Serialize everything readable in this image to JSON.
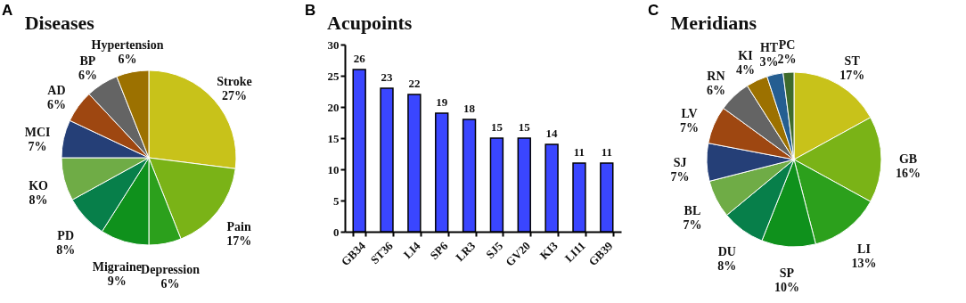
{
  "chart_data": [
    {
      "type": "pie",
      "title": "Diseases",
      "annotations": [
        "A"
      ],
      "categories": [
        "Stroke",
        "Pain",
        "Depression",
        "Migraine",
        "PD",
        "KO",
        "MCI",
        "AD",
        "BP",
        "Hypertension"
      ],
      "values": [
        27,
        17,
        6,
        9,
        8,
        8,
        7,
        6,
        6,
        6
      ],
      "value_labels": [
        "27%",
        "17%",
        "6%",
        "9%",
        "8%",
        "8%",
        "7%",
        "6%",
        "6%",
        "6%"
      ],
      "colors": [
        "#c8c21a",
        "#7ab317",
        "#2ca01c",
        "#0f911c",
        "#077f4a",
        "#6fac46",
        "#253f77",
        "#9e4711",
        "#646464",
        "#9c7100"
      ]
    },
    {
      "type": "bar",
      "title": "Acupoints",
      "annotations": [
        "B"
      ],
      "categories": [
        "GB34",
        "ST36",
        "LI4",
        "SP6",
        "LR3",
        "SJ5",
        "GV20",
        "KI3",
        "LI11",
        "GB39"
      ],
      "values": [
        26,
        23,
        22,
        19,
        18,
        15,
        15,
        14,
        11,
        11
      ],
      "color": "#3a46ff",
      "ylim": [
        0,
        30
      ],
      "yticks": [
        0,
        5,
        10,
        15,
        20,
        25,
        30
      ],
      "grid": false,
      "data_labels": true
    },
    {
      "type": "pie",
      "title": "Meridians",
      "annotations": [
        "C"
      ],
      "categories": [
        "ST",
        "GB",
        "LI",
        "SP",
        "DU",
        "BL",
        "SJ",
        "LV",
        "RN",
        "KI",
        "HT",
        "PC"
      ],
      "values": [
        17,
        16,
        13,
        10,
        8,
        7,
        7,
        7,
        6,
        4,
        3,
        2
      ],
      "value_labels": [
        "17%",
        "16%",
        "13%",
        "10%",
        "8%",
        "7%",
        "7%",
        "7%",
        "6%",
        "4%",
        "3%",
        "2%"
      ],
      "colors": [
        "#c8c21a",
        "#7ab317",
        "#2ca01c",
        "#0f911c",
        "#077f4a",
        "#6fac46",
        "#253f77",
        "#9e4711",
        "#646464",
        "#9c7100",
        "#255e91",
        "#3e6a2c"
      ]
    }
  ]
}
